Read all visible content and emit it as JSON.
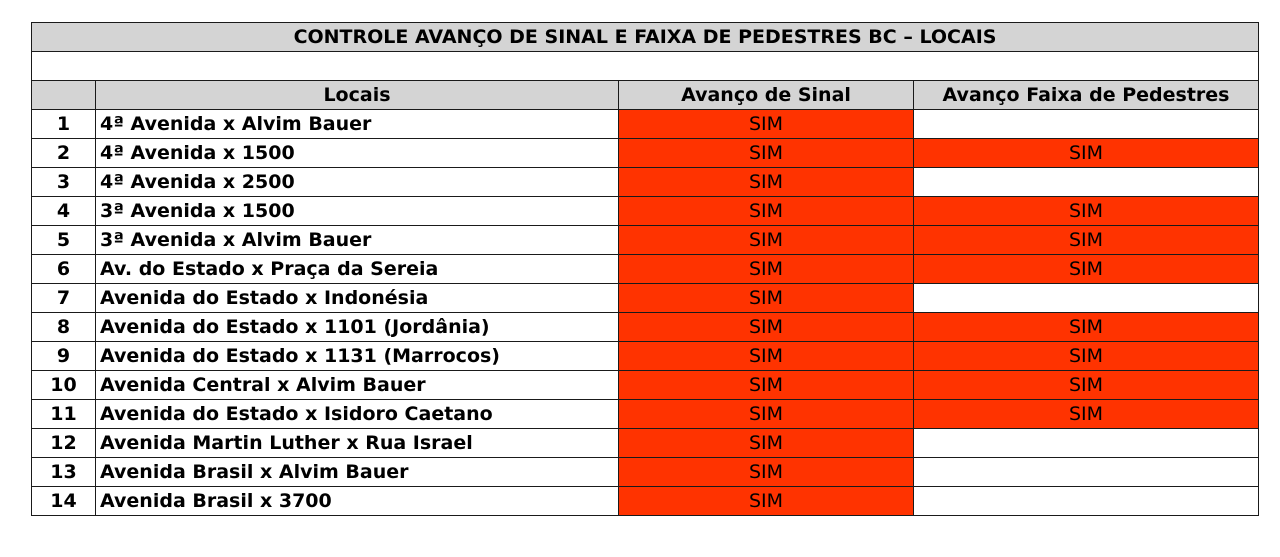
{
  "title": "CONTROLE AVANÇO DE SINAL E FAIXA DE PEDESTRES BC – LOCAIS",
  "columns": {
    "num": "",
    "locais": "Locais",
    "sinal": "Avanço de Sinal",
    "faixa": "Avanço Faixa de Pedestres"
  },
  "highlight_color": "#ff3300",
  "header_bg_color": "#d4d4d4",
  "rows": [
    {
      "num": "1",
      "local": "4ª Avenida x Alvim Bauer",
      "sinal": "SIM",
      "faixa": ""
    },
    {
      "num": "2",
      "local": "4ª Avenida x 1500",
      "sinal": "SIM",
      "faixa": "SIM"
    },
    {
      "num": "3",
      "local": "4ª Avenida x 2500",
      "sinal": "SIM",
      "faixa": ""
    },
    {
      "num": "4",
      "local": "3ª Avenida x 1500",
      "sinal": "SIM",
      "faixa": "SIM"
    },
    {
      "num": "5",
      "local": "3ª Avenida x Alvim Bauer",
      "sinal": "SIM",
      "faixa": "SIM"
    },
    {
      "num": "6",
      "local": "Av. do Estado x Praça da Sereia",
      "sinal": "SIM",
      "faixa": "SIM"
    },
    {
      "num": "7",
      "local": "Avenida do Estado x Indonésia",
      "sinal": "SIM",
      "faixa": ""
    },
    {
      "num": "8",
      "local": "Avenida do Estado x 1101 (Jordânia)",
      "sinal": "SIM",
      "faixa": "SIM"
    },
    {
      "num": "9",
      "local": "Avenida do Estado x 1131 (Marrocos)",
      "sinal": "SIM",
      "faixa": "SIM"
    },
    {
      "num": "10",
      "local": "Avenida Central x Alvim Bauer",
      "sinal": "SIM",
      "faixa": "SIM"
    },
    {
      "num": "11",
      "local": "Avenida do Estado x Isidoro Caetano",
      "sinal": "SIM",
      "faixa": "SIM"
    },
    {
      "num": "12",
      "local": "Avenida Martin Luther x Rua Israel",
      "sinal": "SIM",
      "faixa": ""
    },
    {
      "num": "13",
      "local": "Avenida Brasil x Alvim Bauer",
      "sinal": "SIM",
      "faixa": ""
    },
    {
      "num": "14",
      "local": "Avenida Brasil x 3700",
      "sinal": "SIM",
      "faixa": ""
    }
  ]
}
